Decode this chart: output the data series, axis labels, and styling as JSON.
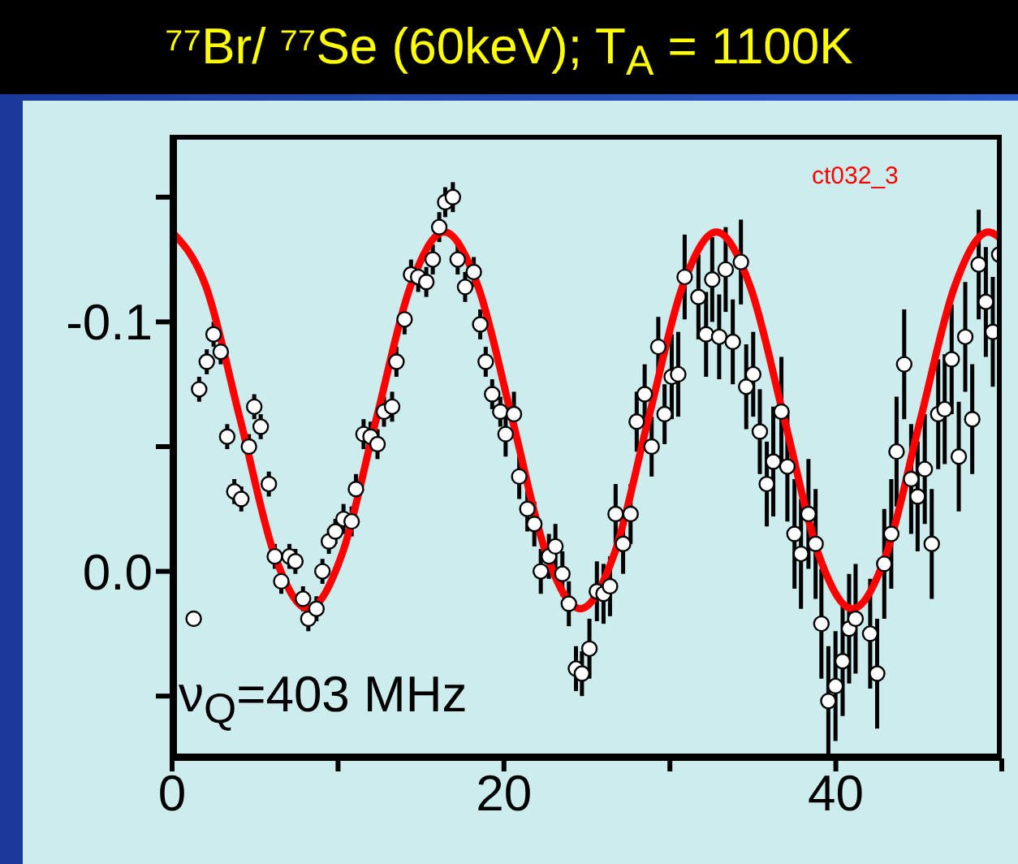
{
  "chart_data": {
    "type": "scatter",
    "title": "⁷⁷Br/ ⁷⁷Se (60keV); T$_{A}$ = 1100K",
    "annotations": [
      "ct032_3",
      "ν$_{Q}$=403 MHz"
    ],
    "xlim": [
      0,
      50
    ],
    "xticks": [
      0,
      {
        "value": 10,
        "label": null
      },
      20,
      {
        "value": 30,
        "label": null
      },
      40,
      {
        "value": 50,
        "label": null
      }
    ],
    "ylim": [
      0.075,
      -0.175
    ],
    "yticks": [
      {
        "value": -0.15,
        "label": null
      },
      -0.1,
      {
        "value": -0.05,
        "label": null
      },
      {
        "value": 0,
        "label": "0.0"
      },
      {
        "value": 0.05,
        "label": null
      }
    ],
    "series": [
      {
        "color": "#ffffff",
        "marker": "circle",
        "x": [
          1.3,
          1.63,
          2.09,
          2.5,
          2.93,
          3.32,
          3.75,
          4.17,
          4.63,
          4.95,
          5.34,
          5.83,
          6.19,
          6.58,
          7.07,
          7.43,
          7.89,
          8.21,
          8.7,
          9.06,
          9.45,
          9.84,
          10.33,
          10.82,
          11.08,
          11.54,
          11.96,
          12.38,
          12.77,
          13.26,
          13.52,
          14.01,
          14.4,
          14.83,
          15.32,
          15.71,
          16.1,
          16.46,
          16.92,
          17.21,
          17.66,
          18.18,
          18.57,
          18.9,
          19.29,
          19.78,
          20.1,
          20.6,
          20.92,
          21.41,
          21.83,
          22.22,
          22.71,
          23.1,
          23.52,
          23.91,
          24.34,
          24.7,
          25.15,
          25.6,
          26.0,
          26.39,
          26.73,
          27.18,
          27.63,
          28.0,
          28.48,
          28.9,
          29.3,
          29.68,
          30.11,
          30.5,
          30.89,
          31.72,
          32.18,
          32.55,
          32.97,
          33.36,
          33.79,
          34.28,
          34.6,
          35.02,
          35.42,
          35.84,
          36.23,
          36.72,
          37.08,
          37.51,
          37.9,
          38.35,
          38.78,
          39.13,
          39.55,
          39.98,
          40.41,
          40.8,
          41.19,
          42.07,
          42.49,
          42.92,
          43.34,
          43.66,
          44.12,
          44.54,
          44.93,
          45.36,
          45.78,
          46.17,
          46.56,
          46.98,
          47.41,
          47.8,
          48.22,
          48.61,
          49.04,
          49.46,
          49.85
        ],
        "values": [
          0.019,
          -0.073,
          -0.084,
          -0.095,
          -0.088,
          -0.054,
          -0.032,
          -0.029,
          -0.05,
          -0.066,
          -0.058,
          -0.035,
          -0.006,
          0.004,
          -0.006,
          -0.004,
          0.011,
          0.019,
          0.015,
          0.0,
          -0.012,
          -0.016,
          -0.021,
          -0.02,
          -0.033,
          -0.055,
          -0.054,
          -0.051,
          -0.064,
          -0.066,
          -0.084,
          -0.101,
          -0.119,
          -0.118,
          -0.116,
          -0.125,
          -0.138,
          -0.148,
          -0.15,
          -0.125,
          -0.114,
          -0.12,
          -0.099,
          -0.084,
          -0.071,
          -0.064,
          -0.055,
          -0.063,
          -0.038,
          -0.025,
          -0.019,
          0.0,
          -0.006,
          -0.01,
          0.001,
          0.013,
          0.039,
          0.041,
          0.031,
          0.008,
          0.009,
          0.006,
          -0.023,
          -0.011,
          -0.023,
          -0.06,
          -0.071,
          -0.05,
          -0.09,
          -0.063,
          -0.078,
          -0.079,
          -0.118,
          -0.11,
          -0.095,
          -0.117,
          -0.094,
          -0.121,
          -0.092,
          -0.124,
          -0.074,
          -0.079,
          -0.056,
          -0.035,
          -0.044,
          -0.064,
          -0.042,
          -0.015,
          -0.007,
          -0.023,
          -0.011,
          0.021,
          0.052,
          0.046,
          0.036,
          0.023,
          0.019,
          0.025,
          0.041,
          -0.003,
          -0.015,
          -0.048,
          -0.083,
          -0.037,
          -0.03,
          -0.041,
          -0.011,
          -0.063,
          -0.065,
          -0.085,
          -0.046,
          -0.094,
          -0.061,
          -0.123,
          -0.108,
          -0.096,
          -0.127
        ],
        "errors": [
          null,
          0.005,
          0.005,
          0.005,
          0.005,
          0.005,
          0.005,
          0.005,
          0.005,
          0.005,
          0.005,
          0.005,
          0.005,
          0.005,
          0.005,
          0.005,
          0.005,
          0.005,
          0.005,
          0.005,
          0.005,
          0.005,
          0.006,
          0.006,
          0.006,
          0.006,
          0.006,
          0.006,
          0.006,
          0.006,
          0.006,
          0.006,
          0.006,
          0.006,
          0.006,
          0.006,
          0.006,
          0.006,
          0.006,
          0.006,
          0.006,
          0.006,
          0.006,
          0.006,
          0.006,
          0.006,
          0.009,
          0.009,
          0.009,
          0.009,
          0.009,
          0.009,
          0.009,
          0.009,
          0.009,
          0.009,
          0.009,
          0.009,
          0.012,
          0.012,
          0.012,
          0.012,
          0.012,
          0.012,
          0.012,
          0.012,
          0.012,
          0.012,
          0.012,
          0.012,
          0.017,
          0.017,
          0.017,
          0.017,
          0.017,
          0.017,
          0.017,
          0.017,
          0.017,
          0.017,
          0.017,
          0.017,
          0.017,
          0.017,
          0.022,
          0.022,
          0.022,
          0.022,
          0.022,
          0.022,
          0.022,
          0.022,
          0.022,
          0.022,
          0.022,
          0.022,
          0.022,
          0.022,
          0.022,
          0.022,
          0.022,
          0.022,
          0.022,
          0.022,
          0.022,
          0.022,
          0.022,
          0.022,
          0.022,
          0.022,
          0.022,
          0.022,
          0.022,
          0.022,
          0.022,
          0.022,
          0.022
        ]
      },
      {
        "type": "line",
        "color": "#ff0000",
        "marker": "none",
        "line_style": "solid",
        "x": [
          0,
          2.05,
          4.1,
          6.15,
          8.2,
          10.25,
          12.3,
          14.35,
          16.4,
          18.45,
          20.5,
          22.55,
          24.6,
          26.65,
          28.7,
          30.75,
          32.8,
          34.85,
          36.9,
          38.95,
          41,
          43.05,
          45.1,
          47.15,
          49.2,
          50
        ],
        "values": [
          -0.136,
          -0.114,
          -0.061,
          -0.007,
          0.015,
          -0.007,
          -0.061,
          -0.114,
          -0.136,
          -0.114,
          -0.061,
          -0.007,
          0.015,
          -0.007,
          -0.061,
          -0.114,
          -0.136,
          -0.114,
          -0.061,
          -0.007,
          0.015,
          -0.007,
          -0.061,
          -0.114,
          -0.136,
          -0.133
        ]
      }
    ]
  }
}
